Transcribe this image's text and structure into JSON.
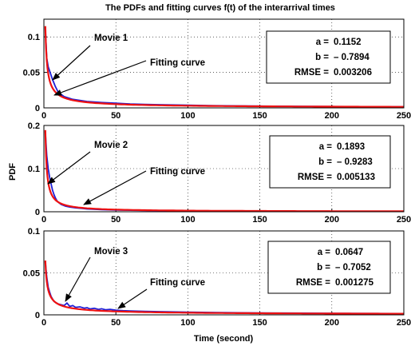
{
  "chart_data": {
    "type": "line",
    "title": "The PDFs and fitting curves f(t) of the interarrival times",
    "xlabel": "Time (second)",
    "ylabel": "PDF",
    "grid": true,
    "xlim": [
      0,
      250
    ],
    "xticks": [
      "0",
      "50",
      "100",
      "150",
      "200",
      "250"
    ],
    "model": "f(t) = a * t^b",
    "colors": {
      "data": "#1f1fd6",
      "fit": "#ee1111"
    },
    "panels": [
      {
        "ylim": [
          0,
          0.125
        ],
        "yticks": [
          {
            "value": 0,
            "label": "0"
          },
          {
            "value": 0.05,
            "label": "0.05"
          },
          {
            "value": 0.1,
            "label": "0.1"
          }
        ],
        "series_label": "Movie 1",
        "fit_label": "Fitting curve",
        "params": {
          "a": 0.1152,
          "b": -0.7894,
          "rmse": 0.003206
        },
        "stats": {
          "a_label": "a =",
          "a_value": "0.1152",
          "b_label": "b =",
          "b_value": "– 0.7894",
          "rmse_label": "RMSE =",
          "rmse_value": "0.003206"
        },
        "data_x": [
          1,
          2,
          3,
          4,
          5,
          6,
          7,
          8,
          9,
          10,
          12,
          14,
          17,
          20,
          25,
          30,
          40,
          50,
          60,
          70,
          80,
          100,
          120,
          150,
          180,
          210,
          250
        ],
        "data_y": [
          0.112,
          0.07,
          0.058,
          0.052,
          0.046,
          0.04,
          0.035,
          0.03,
          0.026,
          0.022,
          0.019,
          0.016,
          0.014,
          0.012,
          0.0105,
          0.009,
          0.0075,
          0.0065,
          0.0055,
          0.005,
          0.0045,
          0.0037,
          0.003,
          0.0025,
          0.0021,
          0.0018,
          0.0015
        ]
      },
      {
        "ylim": [
          0,
          0.2
        ],
        "yticks": [
          {
            "value": 0,
            "label": "0"
          },
          {
            "value": 0.1,
            "label": "0.1"
          },
          {
            "value": 0.2,
            "label": "0.2"
          }
        ],
        "series_label": "Movie 2",
        "fit_label": "Fitting curve",
        "params": {
          "a": 0.1893,
          "b": -0.9283,
          "rmse": 0.005133
        },
        "stats": {
          "a_label": "a =",
          "a_value": "0.1893",
          "b_label": "b =",
          "b_value": "– 0.9283",
          "rmse_label": "RMSE =",
          "rmse_value": "0.005133"
        },
        "data_x": [
          1,
          2,
          3,
          4,
          5,
          6,
          7,
          8,
          9,
          10,
          12,
          15,
          18,
          22,
          26,
          30,
          40,
          50,
          70,
          100,
          150,
          200,
          250
        ],
        "data_y": [
          0.185,
          0.13,
          0.1,
          0.08,
          0.065,
          0.05,
          0.04,
          0.032,
          0.026,
          0.022,
          0.017,
          0.013,
          0.011,
          0.009,
          0.008,
          0.0065,
          0.005,
          0.004,
          0.003,
          0.002,
          0.0014,
          0.001,
          0.0008
        ]
      },
      {
        "ylim": [
          0,
          0.1
        ],
        "yticks": [
          {
            "value": 0,
            "label": "0"
          },
          {
            "value": 0.05,
            "label": "0.05"
          },
          {
            "value": 0.1,
            "label": "0.1"
          }
        ],
        "series_label": "Movie 3",
        "fit_label": "Fitting curve",
        "params": {
          "a": 0.0647,
          "b": -0.7052,
          "rmse": 0.001275
        },
        "stats": {
          "a_label": "a =",
          "a_value": "0.0647",
          "b_label": "b =",
          "b_value": "– 0.7052",
          "rmse_label": "RMSE =",
          "rmse_value": "0.001275"
        },
        "data_x": [
          1,
          2,
          3,
          4,
          5,
          6,
          7,
          8,
          10,
          12,
          14,
          16,
          18,
          20,
          22,
          25,
          28,
          30,
          32,
          35,
          38,
          40,
          43,
          46,
          50,
          55,
          60,
          70,
          80,
          100,
          120,
          150,
          200,
          250
        ],
        "data_y": [
          0.063,
          0.045,
          0.033,
          0.027,
          0.022,
          0.019,
          0.016,
          0.015,
          0.013,
          0.012,
          0.011,
          0.014,
          0.01,
          0.011,
          0.009,
          0.0095,
          0.008,
          0.0085,
          0.007,
          0.0078,
          0.0065,
          0.0072,
          0.006,
          0.0066,
          0.0055,
          0.005,
          0.0047,
          0.0042,
          0.0038,
          0.0032,
          0.0027,
          0.0022,
          0.0018,
          0.0015
        ]
      }
    ]
  }
}
